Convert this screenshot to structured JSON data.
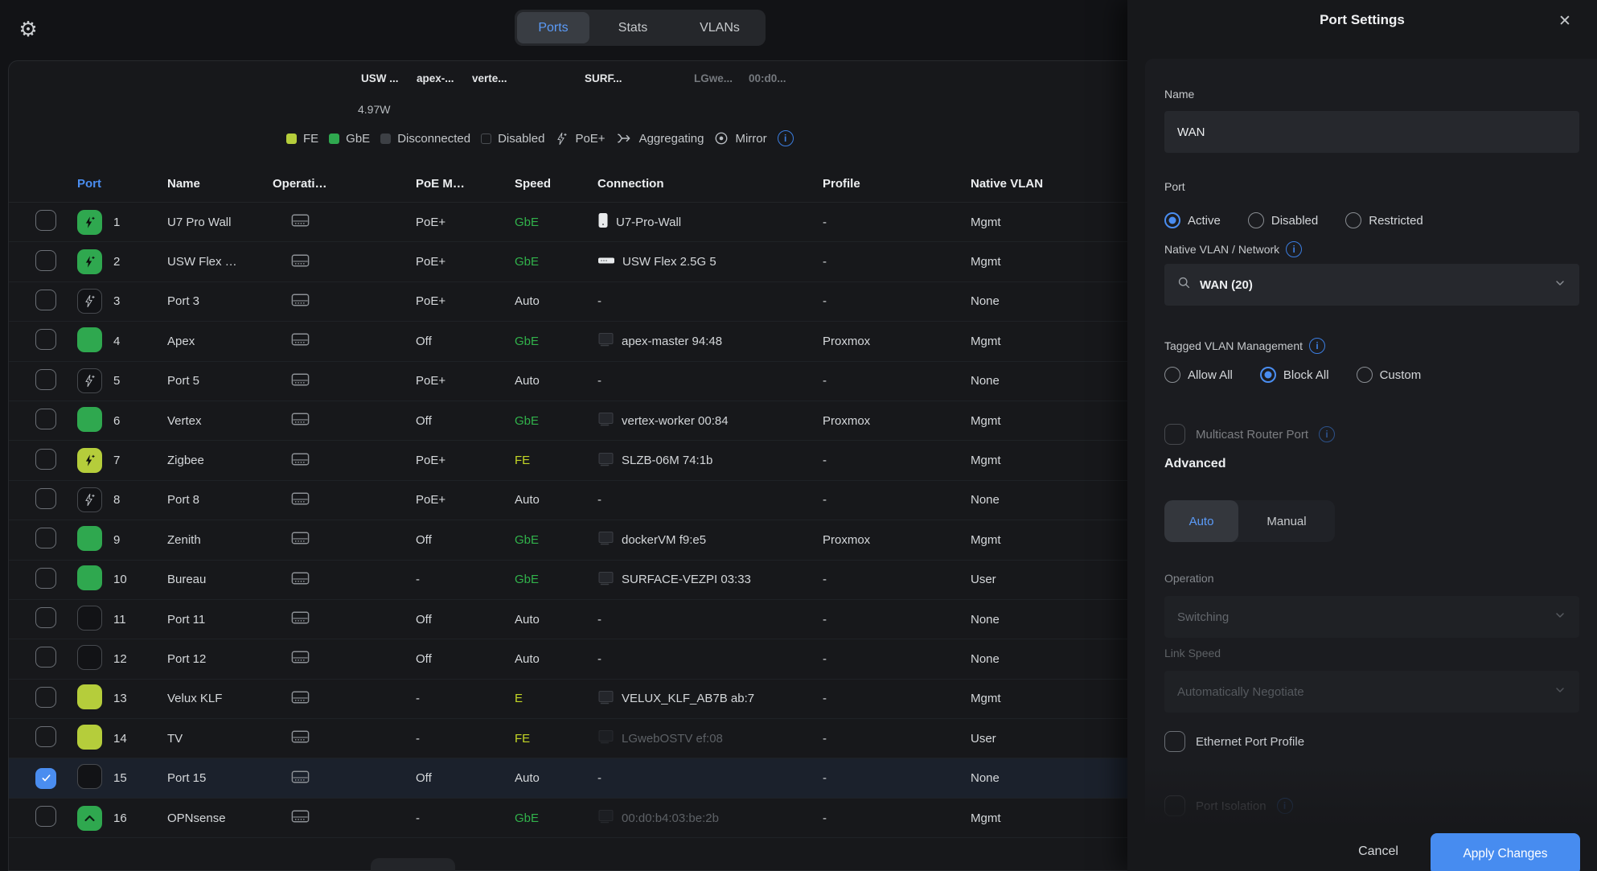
{
  "topbar": {
    "tabs": [
      "Ports",
      "Stats",
      "VLANs"
    ],
    "active_tab": "Ports"
  },
  "device_strip": {
    "labels": [
      {
        "text": "USW ...",
        "dim": false
      },
      {
        "text": "apex-...",
        "dim": false
      },
      {
        "text": "verte...",
        "dim": false
      },
      {
        "text": "SURF...",
        "dim": false
      },
      {
        "text": "LGwe...",
        "dim": true
      },
      {
        "text": "00:d0...",
        "dim": true
      }
    ],
    "power": "4.97W"
  },
  "legend": {
    "items": [
      {
        "icon": "swatch-fe",
        "label": "FE"
      },
      {
        "icon": "swatch-gbe",
        "label": "GbE"
      },
      {
        "icon": "swatch-disconnected",
        "label": "Disconnected"
      },
      {
        "icon": "swatch-disabled",
        "label": "Disabled"
      },
      {
        "icon": "poe-bolt",
        "label": "PoE+"
      },
      {
        "icon": "aggregating",
        "label": "Aggregating"
      },
      {
        "icon": "mirror",
        "label": "Mirror"
      },
      {
        "icon": "info",
        "label": ""
      }
    ]
  },
  "table": {
    "headers": {
      "port": "Port",
      "name": "Name",
      "operation": "Operati…",
      "poe_mode": "PoE M…",
      "speed": "Speed",
      "connection": "Connection",
      "profile": "Profile",
      "native_vlan": "Native VLAN"
    },
    "rows": [
      {
        "num": "1",
        "name": "U7 Pro Wall",
        "icon": "poe-gbe",
        "poe": "PoE+",
        "speed": "GbE",
        "speed_color": "green",
        "conn_icon": "ap",
        "conn": "U7-Pro-Wall",
        "profile": "-",
        "vlan": "Mgmt",
        "checked": false,
        "selected": false,
        "conn_dim": false
      },
      {
        "num": "2",
        "name": "USW Flex …",
        "icon": "poe-gbe",
        "poe": "PoE+",
        "speed": "GbE",
        "speed_color": "green",
        "conn_icon": "switch",
        "conn": "USW Flex 2.5G 5",
        "profile": "-",
        "vlan": "Mgmt",
        "checked": false,
        "selected": false,
        "conn_dim": false
      },
      {
        "num": "3",
        "name": "Port 3",
        "icon": "poe-idle",
        "poe": "PoE+",
        "speed": "Auto",
        "speed_color": "white",
        "conn_icon": "none",
        "conn": "-",
        "profile": "-",
        "vlan": "None",
        "checked": false,
        "selected": false,
        "conn_dim": false
      },
      {
        "num": "4",
        "name": "Apex",
        "icon": "link-gbe",
        "poe": "Off",
        "speed": "GbE",
        "speed_color": "green",
        "conn_icon": "client",
        "conn": "apex-master 94:48",
        "profile": "Proxmox",
        "vlan": "Mgmt",
        "checked": false,
        "selected": false,
        "conn_dim": false
      },
      {
        "num": "5",
        "name": "Port 5",
        "icon": "poe-idle",
        "poe": "PoE+",
        "speed": "Auto",
        "speed_color": "white",
        "conn_icon": "none",
        "conn": "-",
        "profile": "-",
        "vlan": "None",
        "checked": false,
        "selected": false,
        "conn_dim": false
      },
      {
        "num": "6",
        "name": "Vertex",
        "icon": "link-gbe",
        "poe": "Off",
        "speed": "GbE",
        "speed_color": "green",
        "conn_icon": "client",
        "conn": "vertex-worker 00:84",
        "profile": "Proxmox",
        "vlan": "Mgmt",
        "checked": false,
        "selected": false,
        "conn_dim": false
      },
      {
        "num": "7",
        "name": "Zigbee",
        "icon": "poe-fe",
        "poe": "PoE+",
        "speed": "FE",
        "speed_color": "yellow",
        "conn_icon": "client",
        "conn": "SLZB-06M 74:1b",
        "profile": "-",
        "vlan": "Mgmt",
        "checked": false,
        "selected": false,
        "conn_dim": false
      },
      {
        "num": "8",
        "name": "Port 8",
        "icon": "poe-idle",
        "poe": "PoE+",
        "speed": "Auto",
        "speed_color": "white",
        "conn_icon": "none",
        "conn": "-",
        "profile": "-",
        "vlan": "None",
        "checked": false,
        "selected": false,
        "conn_dim": false
      },
      {
        "num": "9",
        "name": "Zenith",
        "icon": "link-gbe",
        "poe": "Off",
        "speed": "GbE",
        "speed_color": "green",
        "conn_icon": "client",
        "conn": "dockerVM f9:e5",
        "profile": "Proxmox",
        "vlan": "Mgmt",
        "checked": false,
        "selected": false,
        "conn_dim": false
      },
      {
        "num": "10",
        "name": "Bureau",
        "icon": "link-gbe",
        "poe": "-",
        "speed": "GbE",
        "speed_color": "green",
        "conn_icon": "client",
        "conn": "SURFACE-VEZPI 03:33",
        "profile": "-",
        "vlan": "User",
        "checked": false,
        "selected": false,
        "conn_dim": false
      },
      {
        "num": "11",
        "name": "Port 11",
        "icon": "empty",
        "poe": "Off",
        "speed": "Auto",
        "speed_color": "white",
        "conn_icon": "none",
        "conn": "-",
        "profile": "-",
        "vlan": "None",
        "checked": false,
        "selected": false,
        "conn_dim": false
      },
      {
        "num": "12",
        "name": "Port 12",
        "icon": "empty",
        "poe": "Off",
        "speed": "Auto",
        "speed_color": "white",
        "conn_icon": "none",
        "conn": "-",
        "profile": "-",
        "vlan": "None",
        "checked": false,
        "selected": false,
        "conn_dim": false
      },
      {
        "num": "13",
        "name": "Velux KLF",
        "icon": "link-fe",
        "poe": "-",
        "speed": "E",
        "speed_color": "yellow",
        "conn_icon": "client",
        "conn": "VELUX_KLF_AB7B ab:7",
        "profile": "-",
        "vlan": "Mgmt",
        "checked": false,
        "selected": false,
        "conn_dim": false
      },
      {
        "num": "14",
        "name": "TV",
        "icon": "link-fe",
        "poe": "-",
        "speed": "FE",
        "speed_color": "yellow",
        "conn_icon": "client",
        "conn": "LGwebOSTV ef:08",
        "profile": "-",
        "vlan": "User",
        "checked": false,
        "selected": false,
        "conn_dim": true
      },
      {
        "num": "15",
        "name": "Port 15",
        "icon": "empty",
        "poe": "Off",
        "speed": "Auto",
        "speed_color": "white",
        "conn_icon": "none",
        "conn": "-",
        "profile": "-",
        "vlan": "None",
        "checked": true,
        "selected": true,
        "conn_dim": false
      },
      {
        "num": "16",
        "name": "OPNsense",
        "icon": "uplink",
        "poe": "-",
        "speed": "GbE",
        "speed_color": "green",
        "conn_icon": "client",
        "conn": "00:d0:b4:03:be:2b",
        "profile": "-",
        "vlan": "Mgmt",
        "checked": false,
        "selected": false,
        "conn_dim": true
      }
    ]
  },
  "panel": {
    "title": "Port Settings",
    "name_label": "Name",
    "name_value": "WAN",
    "port_label": "Port",
    "port_options": [
      "Active",
      "Disabled",
      "Restricted"
    ],
    "port_selected": "Active",
    "native_vlan_label": "Native VLAN / Network",
    "native_vlan_value": "WAN (20)",
    "tagged_label": "Tagged VLAN Management",
    "tagged_options": [
      "Allow All",
      "Block All",
      "Custom"
    ],
    "tagged_selected": "Block All",
    "multicast_label": "Multicast Router Port",
    "advanced_label": "Advanced",
    "mode_options": [
      "Auto",
      "Manual"
    ],
    "mode_selected": "Auto",
    "operation_label": "Operation",
    "operation_value": "Switching",
    "link_speed_label": "Link Speed",
    "link_speed_value": "Automatically Negotiate",
    "ethernet_profile_label": "Ethernet Port Profile",
    "port_isolation_label": "Port Isolation",
    "cancel_label": "Cancel",
    "apply_label": "Apply Changes"
  },
  "colors": {
    "accent_blue": "#478cf0",
    "link_green": "#2fa84f",
    "fe_yellow": "#b5cd3b",
    "speed_green": "#31b24b",
    "speed_yellow": "#c3d626",
    "panel_bg": "#17181b"
  }
}
